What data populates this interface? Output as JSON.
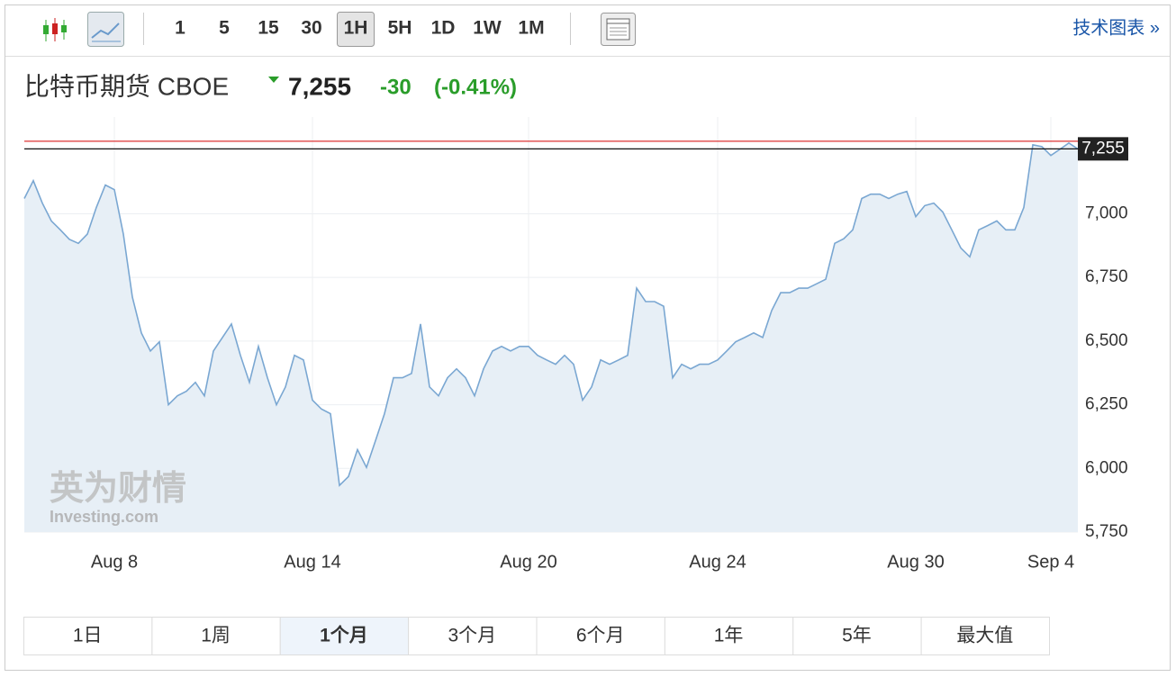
{
  "toolbar": {
    "intervals": [
      "1",
      "5",
      "15",
      "30",
      "1H",
      "5H",
      "1D",
      "1W",
      "1M"
    ],
    "active_interval": 4,
    "link": "技术图表 »"
  },
  "header": {
    "name": "比特币期货 CBOE",
    "price": "7,255",
    "change": "-30",
    "change_pct": "(-0.41%)"
  },
  "chart_data": {
    "type": "line",
    "color": "#7aa7d2",
    "fill": "#e7eff6",
    "categories": [
      null,
      null,
      null,
      null,
      null,
      null,
      null,
      null,
      null,
      null,
      "Aug 8",
      null,
      null,
      null,
      null,
      null,
      null,
      null,
      null,
      null,
      null,
      null,
      null,
      null,
      null,
      null,
      null,
      null,
      null,
      null,
      null,
      null,
      "Aug 14",
      null,
      null,
      null,
      null,
      null,
      null,
      null,
      null,
      null,
      null,
      null,
      null,
      null,
      null,
      null,
      null,
      null,
      null,
      null,
      null,
      null,
      null,
      null,
      "Aug 20",
      null,
      null,
      null,
      null,
      null,
      null,
      null,
      null,
      null,
      null,
      null,
      null,
      null,
      null,
      null,
      null,
      null,
      null,
      null,
      null,
      "Aug 24",
      null,
      null,
      null,
      null,
      null,
      null,
      null,
      null,
      null,
      null,
      null,
      null,
      null,
      null,
      null,
      null,
      null,
      null,
      null,
      null,
      null,
      "Aug 30",
      null,
      null,
      null,
      null,
      null,
      null,
      null,
      null,
      null,
      null,
      null,
      null,
      null,
      null,
      "Sep 4",
      null,
      null,
      null
    ],
    "values": [
      7060,
      7130,
      7042,
      6972,
      6937,
      6900,
      6884,
      6920,
      7025,
      7113,
      7095,
      6920,
      6673,
      6532,
      6461,
      6497,
      6250,
      6285,
      6303,
      6338,
      6285,
      6461,
      6514,
      6567,
      6444,
      6338,
      6479,
      6356,
      6250,
      6320,
      6444,
      6426,
      6268,
      6233,
      6215,
      5933,
      5968,
      6074,
      6004,
      6109,
      6215,
      6356,
      6356,
      6373,
      6567,
      6320,
      6285,
      6356,
      6391,
      6356,
      6285,
      6391,
      6461,
      6479,
      6461,
      6479,
      6479,
      6444,
      6426,
      6409,
      6444,
      6409,
      6268,
      6320,
      6426,
      6409,
      6426,
      6444,
      6708,
      6655,
      6655,
      6637,
      6356,
      6409,
      6391,
      6409,
      6409,
      6426,
      6461,
      6497,
      6514,
      6532,
      6514,
      6620,
      6690,
      6690,
      6708,
      6708,
      6725,
      6743,
      6884,
      6902,
      6937,
      7060,
      7077,
      7077,
      7060,
      7077,
      7088,
      6989,
      7032,
      7042,
      7007,
      6937,
      6866,
      6831,
      6937,
      6954,
      6972,
      6937,
      6937,
      7025,
      7271,
      7264,
      7229,
      7253,
      7278,
      7255
    ],
    "ylim": [
      5750,
      7380
    ],
    "yticks": [
      {
        "value": 5750,
        "label": "5,750"
      },
      {
        "value": 6000,
        "label": "6,000"
      },
      {
        "value": 6250,
        "label": "6,250"
      },
      {
        "value": 6500,
        "label": "6,500"
      },
      {
        "value": 6750,
        "label": "6,750"
      },
      {
        "value": 7000,
        "label": "7,000"
      }
    ],
    "current": {
      "value": 7255,
      "label": "7,255"
    },
    "reference": 7285,
    "grid": true,
    "watermark": [
      "英为财情",
      "Investing.com"
    ]
  },
  "ranges": {
    "items": [
      "1日",
      "1周",
      "1个月",
      "3个月",
      "6个月",
      "1年",
      "5年",
      "最大值"
    ],
    "active": 2
  }
}
